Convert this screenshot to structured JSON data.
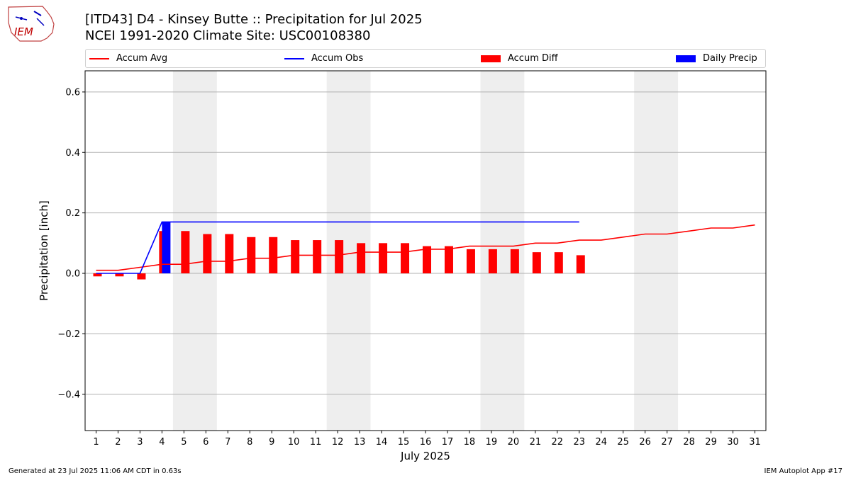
{
  "header": {
    "title_line1": "[ITD43] D4 - Kinsey Butte  :: Precipitation for Jul 2025",
    "title_line2": "NCEI 1991-2020 Climate Site: USC00108380",
    "logo_text": "IEM"
  },
  "legend": {
    "items": [
      {
        "label": "Accum Avg",
        "kind": "line",
        "color": "#ff0000"
      },
      {
        "label": "Accum Obs",
        "kind": "line",
        "color": "#0000ff"
      },
      {
        "label": "Accum Diff",
        "kind": "patch",
        "color": "#ff0000"
      },
      {
        "label": "Daily Precip",
        "kind": "patch",
        "color": "#0000ff"
      }
    ]
  },
  "footer": {
    "left": "Generated at 23 Jul 2025 11:06 AM CDT in 0.63s",
    "right": "IEM Autoplot App #17"
  },
  "chart_data": {
    "type": "bar",
    "xlabel": "July 2025",
    "ylabel": "Precipitation [inch]",
    "xlim": [
      0.5,
      31.5
    ],
    "ylim": [
      -0.52,
      0.67
    ],
    "yticks": [
      -0.4,
      -0.2,
      0.0,
      0.2,
      0.4,
      0.6
    ],
    "ytick_labels": [
      "−0.4",
      "−0.2",
      "0.0",
      "0.2",
      "0.4",
      "0.6"
    ],
    "x": [
      1,
      2,
      3,
      4,
      5,
      6,
      7,
      8,
      9,
      10,
      11,
      12,
      13,
      14,
      15,
      16,
      17,
      18,
      19,
      20,
      21,
      22,
      23,
      24,
      25,
      26,
      27,
      28,
      29,
      30,
      31
    ],
    "weekend_shading": [
      [
        4.5,
        6.5
      ],
      [
        11.5,
        13.5
      ],
      [
        18.5,
        20.5
      ],
      [
        25.5,
        27.5
      ]
    ],
    "grid": "horizontal",
    "series": [
      {
        "name": "Accum Avg",
        "type": "line",
        "color": "#ff0000",
        "x": [
          1,
          2,
          3,
          4,
          5,
          6,
          7,
          8,
          9,
          10,
          11,
          12,
          13,
          14,
          15,
          16,
          17,
          18,
          19,
          20,
          21,
          22,
          23,
          24,
          25,
          26,
          27,
          28,
          29,
          30,
          31
        ],
        "values": [
          0.01,
          0.01,
          0.02,
          0.03,
          0.03,
          0.04,
          0.04,
          0.05,
          0.05,
          0.06,
          0.06,
          0.06,
          0.07,
          0.07,
          0.07,
          0.08,
          0.08,
          0.09,
          0.09,
          0.09,
          0.1,
          0.1,
          0.11,
          0.11,
          0.12,
          0.13,
          0.13,
          0.14,
          0.15,
          0.15,
          0.16
        ]
      },
      {
        "name": "Accum Obs",
        "type": "line",
        "color": "#0000ff",
        "x": [
          1,
          2,
          3,
          4,
          5,
          6,
          7,
          8,
          9,
          10,
          11,
          12,
          13,
          14,
          15,
          16,
          17,
          18,
          19,
          20,
          21,
          22,
          23
        ],
        "values": [
          0,
          0,
          0,
          0.17,
          0.17,
          0.17,
          0.17,
          0.17,
          0.17,
          0.17,
          0.17,
          0.17,
          0.17,
          0.17,
          0.17,
          0.17,
          0.17,
          0.17,
          0.17,
          0.17,
          0.17,
          0.17,
          0.17
        ]
      },
      {
        "name": "Accum Diff",
        "type": "bar",
        "color": "#ff0000",
        "x": [
          1,
          2,
          3,
          4,
          5,
          6,
          7,
          8,
          9,
          10,
          11,
          12,
          13,
          14,
          15,
          16,
          17,
          18,
          19,
          20,
          21,
          22,
          23
        ],
        "values": [
          -0.01,
          -0.01,
          -0.02,
          0.14,
          0.14,
          0.13,
          0.13,
          0.12,
          0.12,
          0.11,
          0.11,
          0.11,
          0.1,
          0.1,
          0.1,
          0.09,
          0.09,
          0.08,
          0.08,
          0.08,
          0.07,
          0.07,
          0.06
        ]
      },
      {
        "name": "Daily Precip",
        "type": "bar",
        "color": "#0000ff",
        "x": [
          4
        ],
        "values": [
          0.17
        ]
      }
    ]
  }
}
